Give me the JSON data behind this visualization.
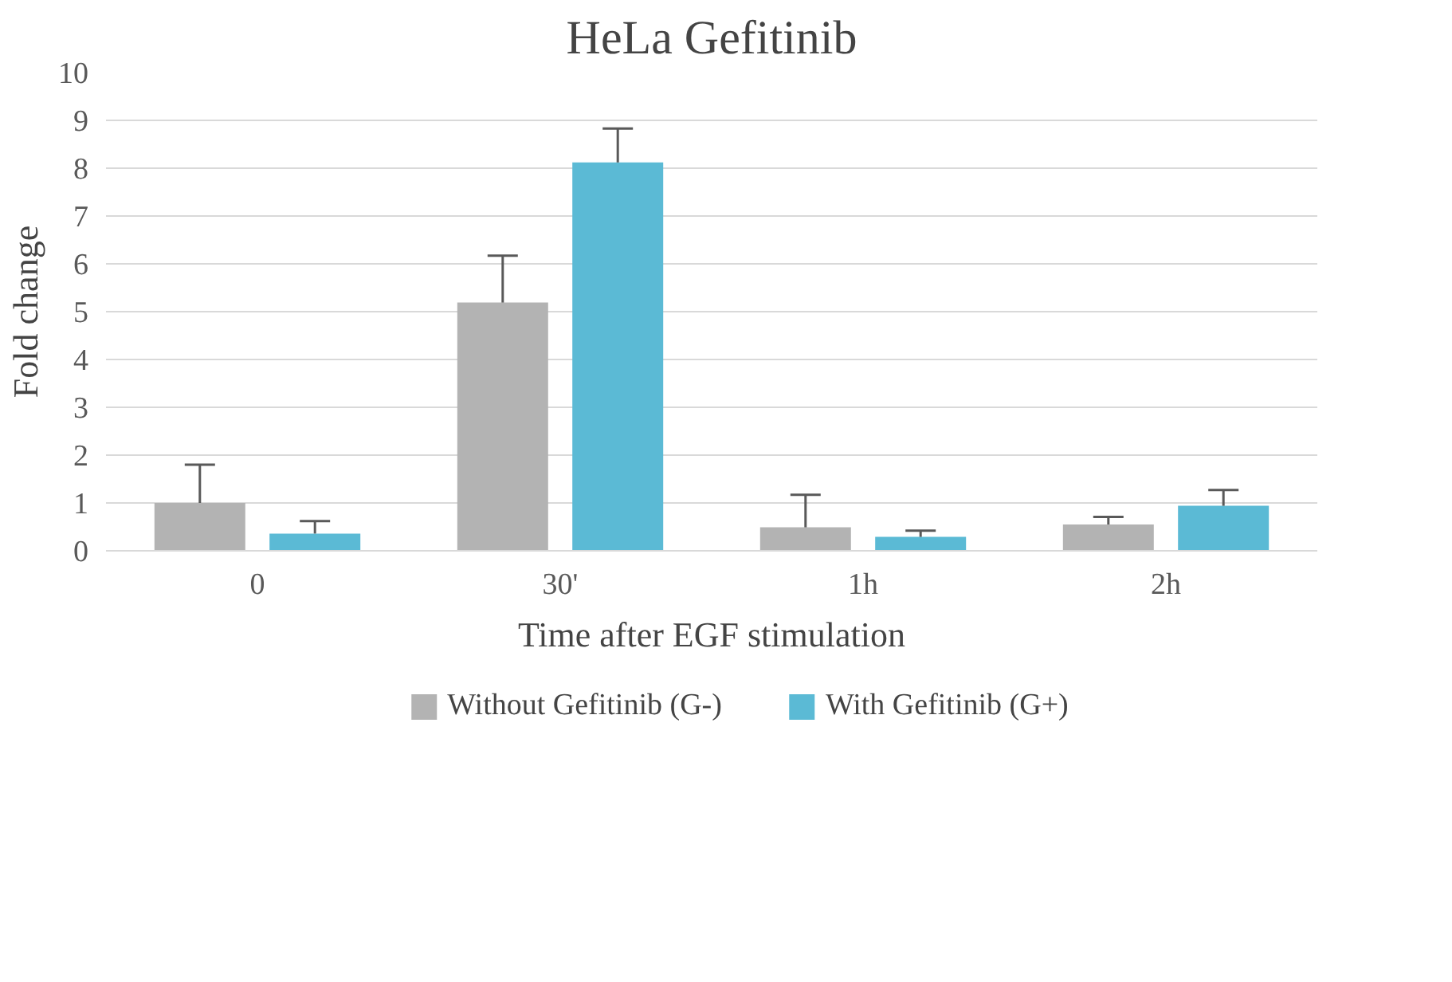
{
  "chart_data": {
    "type": "bar",
    "title": "HeLa Gefitinib",
    "xlabel": "Time after EGF stimulation",
    "ylabel": "Fold change",
    "categories": [
      "0",
      "30'",
      "1h",
      "2h"
    ],
    "series": [
      {
        "name": "Without Gefitinib (G-)",
        "color": "#b3b3b3",
        "values": [
          1.0,
          5.19,
          0.49,
          0.55
        ],
        "errors": [
          [
            1.0,
            1.8
          ],
          [
            5.19,
            6.17
          ],
          [
            0.49,
            1.17
          ],
          [
            0.55,
            0.71
          ]
        ]
      },
      {
        "name": "With Gefitinib (G+)",
        "color": "#5bbad5",
        "values": [
          0.36,
          8.12,
          0.29,
          0.94
        ],
        "errors": [
          [
            0.36,
            0.62
          ],
          [
            8.12,
            8.83
          ],
          [
            0.29,
            0.42
          ],
          [
            0.94,
            1.27
          ]
        ]
      }
    ],
    "ylim": [
      0,
      10
    ],
    "yticks": [
      0,
      1,
      2,
      3,
      4,
      5,
      6,
      7,
      8,
      9,
      10
    ],
    "grid": "y",
    "legend": "bottom"
  }
}
